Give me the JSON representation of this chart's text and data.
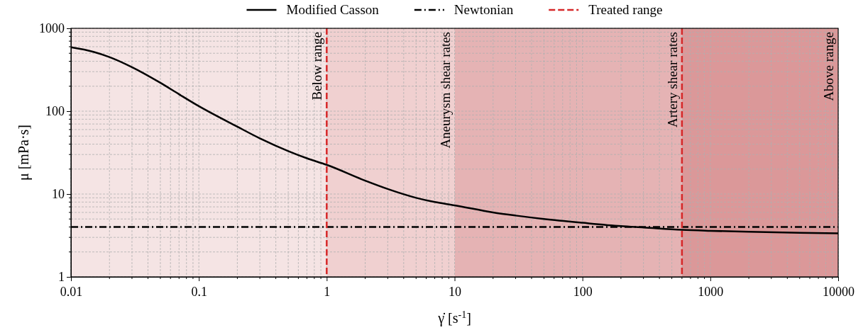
{
  "chart_data": {
    "type": "line",
    "xlabel": "γ̇ [s$^{-1}$]",
    "ylabel": "μ [mPa·s]",
    "log": "xy",
    "grid": true,
    "legend": "top",
    "xlim": [
      0.01,
      10000
    ],
    "xticks": [
      0.01,
      0.1,
      1,
      10,
      100,
      1000,
      10000
    ],
    "ylim": [
      1,
      1000
    ],
    "yticks": [
      1,
      10,
      100,
      1000
    ],
    "series": [
      {
        "name": "Modified Casson",
        "color": "#000000",
        "line_style": "solid",
        "x": [
          0.01,
          0.015,
          0.02,
          0.03,
          0.05,
          0.07,
          0.1,
          0.2,
          0.3,
          0.5,
          0.7,
          1,
          2,
          3,
          5,
          7,
          10,
          20,
          30,
          50,
          100,
          200,
          300,
          600,
          1000,
          2000,
          5000,
          10000
        ],
        "values": [
          590,
          520,
          450,
          340,
          220,
          160,
          115,
          65,
          47,
          33,
          27,
          22.5,
          14.5,
          11.5,
          9,
          8,
          7.3,
          6,
          5.5,
          5,
          4.5,
          4.1,
          3.95,
          3.7,
          3.6,
          3.5,
          3.4,
          3.35
        ]
      },
      {
        "name": "Newtonian",
        "color": "#000000",
        "line_style": "dashdot",
        "x": [
          0.01,
          10000
        ],
        "values": [
          4,
          4
        ]
      }
    ],
    "ref_lines": [
      {
        "axis": "x",
        "value": 1,
        "label": "Treated range",
        "color": "#d62728",
        "line_style": "dashed"
      },
      {
        "axis": "x",
        "value": 600,
        "color": "#d62728",
        "line_style": "dashed"
      }
    ],
    "bands": [
      {
        "axis": "x",
        "from": 0.01,
        "to": 1,
        "label": "Below range",
        "color": "#f5e4e4"
      },
      {
        "axis": "x",
        "from": 1,
        "to": 10,
        "label": "Aneurysm shear rates",
        "color": "#f0d0d0"
      },
      {
        "axis": "x",
        "from": 10,
        "to": 600,
        "label": "Artery shear rates",
        "color": "#e5b3b4"
      },
      {
        "axis": "x",
        "from": 600,
        "to": 10000,
        "label": "Above range",
        "color": "#db9899"
      }
    ]
  }
}
